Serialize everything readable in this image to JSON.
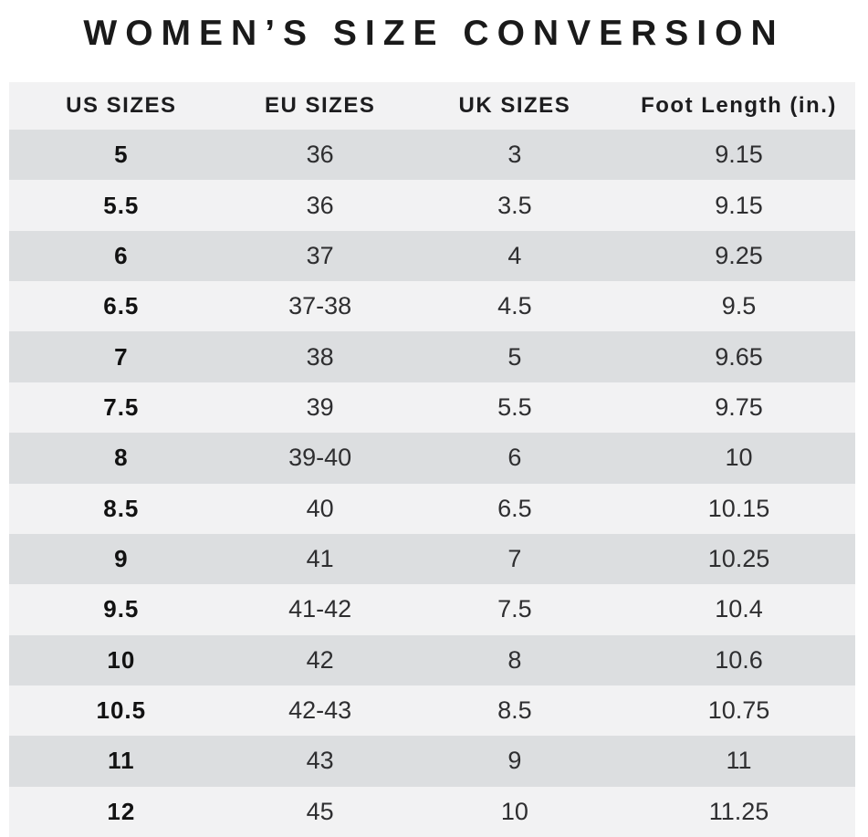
{
  "page": {
    "title": "WOMEN’S SIZE CONVERSION"
  },
  "chart_data": {
    "type": "table",
    "title": "WOMEN’S SIZE CONVERSION",
    "columns": [
      "US SIZES",
      "EU SIZES",
      "UK SIZES",
      "Foot Length (in.)"
    ],
    "rows": [
      [
        "5",
        "36",
        "3",
        "9.15"
      ],
      [
        "5.5",
        "36",
        "3.5",
        "9.15"
      ],
      [
        "6",
        "37",
        "4",
        "9.25"
      ],
      [
        "6.5",
        "37-38",
        "4.5",
        "9.5"
      ],
      [
        "7",
        "38",
        "5",
        "9.65"
      ],
      [
        "7.5",
        "39",
        "5.5",
        "9.75"
      ],
      [
        "8",
        "39-40",
        "6",
        "10"
      ],
      [
        "8.5",
        "40",
        "6.5",
        "10.15"
      ],
      [
        "9",
        "41",
        "7",
        "10.25"
      ],
      [
        "9.5",
        "41-42",
        "7.5",
        "10.4"
      ],
      [
        "10",
        "42",
        "8",
        "10.6"
      ],
      [
        "10.5",
        "42-43",
        "8.5",
        "10.75"
      ],
      [
        "11",
        "43",
        "9",
        "11"
      ],
      [
        "12",
        "45",
        "10",
        "11.25"
      ]
    ]
  },
  "colors": {
    "row_dark": "#dcdee0",
    "row_light": "#f2f2f3",
    "header_bg": "#f2f2f3",
    "title_text": "#1a1a1a",
    "body_text": "#2e2e30",
    "page_bg": "#ffffff"
  }
}
